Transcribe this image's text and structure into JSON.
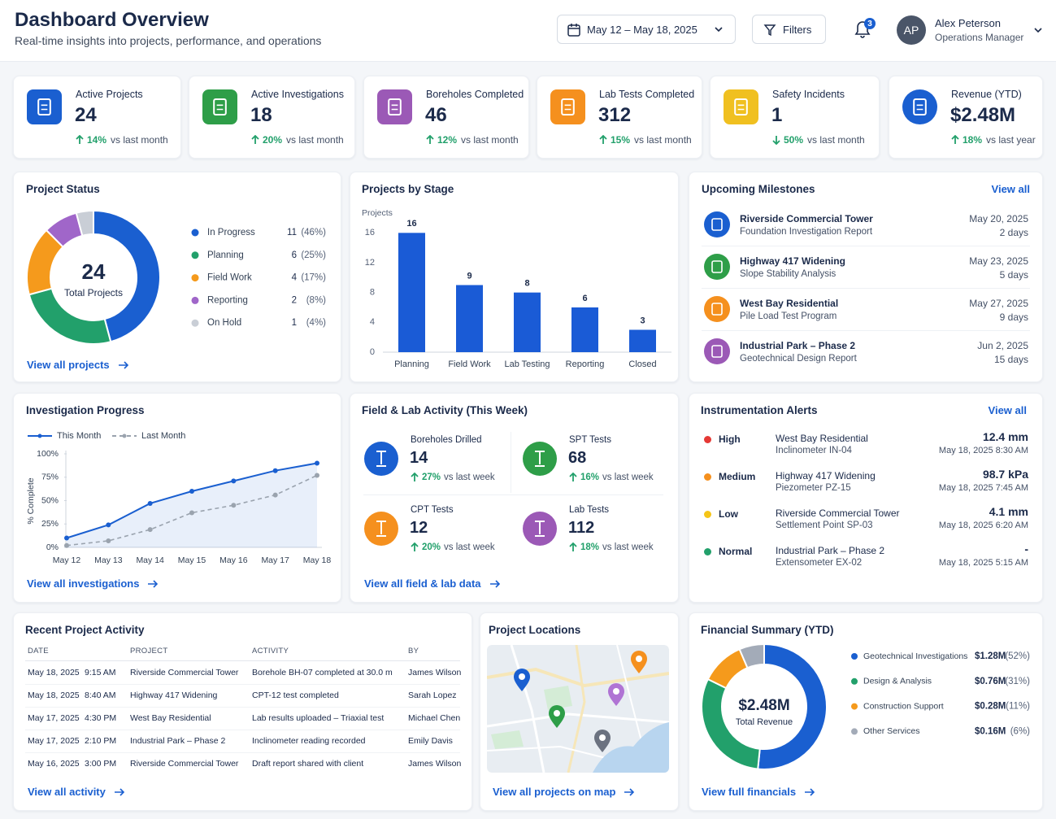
{
  "header": {
    "title": "Dashboard Overview",
    "subtitle": "Real-time insights into projects, performance, and operations",
    "date_range": "May 12 – May 18, 2025",
    "filters": "Filters",
    "notification_count": 3,
    "user": {
      "initials": "AP",
      "name": "Alex Peterson",
      "role": "Operations Manager"
    }
  },
  "kpis": [
    {
      "label": "Active Projects",
      "value": "24",
      "change": "14%",
      "direction": "up",
      "comparison": "vs last month",
      "color": "#1a5fd0"
    },
    {
      "label": "Active Investigations",
      "value": "18",
      "change": "20%",
      "direction": "up",
      "comparison": "vs last month",
      "color": "#2e9e48"
    },
    {
      "label": "Boreholes Completed",
      "value": "46",
      "change": "12%",
      "direction": "up",
      "comparison": "vs last month",
      "color": "#9b59b6"
    },
    {
      "label": "Lab Tests Completed",
      "value": "312",
      "change": "15%",
      "direction": "up",
      "comparison": "vs last month",
      "color": "#f5901e"
    },
    {
      "label": "Safety Incidents",
      "value": "1",
      "change": "50%",
      "direction": "down",
      "comparison": "vs last month",
      "color": "#f0c020"
    },
    {
      "label": "Revenue (YTD)",
      "value": "$2.48M",
      "change": "18%",
      "direction": "up",
      "comparison": "vs last year",
      "color": "#1a5fd0"
    }
  ],
  "project_status": {
    "title": "Project Status",
    "chart": {
      "type": "donut",
      "center_value": 24,
      "center_label": "Total Projects",
      "categories": [
        "In Progress",
        "Planning",
        "Field Work",
        "Reporting",
        "On Hold"
      ],
      "values": [
        11,
        6,
        4,
        2,
        1
      ],
      "percent_labels": [
        "(46%)",
        "(25%)",
        "(17%)",
        "(8%)",
        "(4%)"
      ],
      "colors": [
        "#1a5fd0",
        "#22a06b",
        "#f59a1c",
        "#a066c9",
        "#c9ced6"
      ]
    },
    "link": "View all projects"
  },
  "projects_by_stage": {
    "title": "Projects by Stage",
    "chart": {
      "type": "bar",
      "y_label": "Projects",
      "categories": [
        "Planning",
        "Field Work",
        "Lab Testing",
        "Reporting",
        "Closed"
      ],
      "values": [
        16,
        9,
        8,
        6,
        3
      ],
      "color": "#1a5bd6",
      "ylim": [
        0,
        18
      ],
      "yticks": [
        0,
        4,
        8,
        12,
        16
      ],
      "grid": false
    }
  },
  "upcoming_milestones": {
    "title": "Upcoming Milestones",
    "link": "View all",
    "items": [
      {
        "project": "Riverside Commercial Tower",
        "task": "Foundation Investigation Report",
        "date": "May 20, 2025",
        "due": "2 days",
        "color": "#1a5fd0"
      },
      {
        "project": "Highway 417 Widening",
        "task": "Slope Stability Analysis",
        "date": "May 23, 2025",
        "due": "5 days",
        "color": "#2e9e48"
      },
      {
        "project": "West Bay Residential",
        "task": "Pile Load Test Program",
        "date": "May 27, 2025",
        "due": "9 days",
        "color": "#f5901e"
      },
      {
        "project": "Industrial Park – Phase 2",
        "task": "Geotechnical Design Report",
        "date": "Jun 2, 2025",
        "due": "15 days",
        "color": "#9b59b6"
      }
    ]
  },
  "investigation_progress": {
    "title": "Investigation Progress",
    "chart": {
      "type": "line",
      "y_label": "% Complete",
      "categories": [
        "May 12",
        "May 13",
        "May 14",
        "May 15",
        "May 16",
        "May 17",
        "May 18"
      ],
      "series": [
        {
          "name": "This Month",
          "color": "#1a5fd0",
          "style": "solid",
          "values": [
            10,
            24,
            47,
            60,
            71,
            82,
            90
          ]
        },
        {
          "name": "Last Month",
          "color": "#9aa3ae",
          "style": "dashed",
          "values": [
            2,
            7,
            19,
            37,
            45,
            56,
            77
          ]
        }
      ],
      "ylim": [
        0,
        100
      ],
      "yticks": [
        {
          "value": 0,
          "label": "0%"
        },
        {
          "value": 25,
          "label": "25%"
        },
        {
          "value": 50,
          "label": "50%"
        },
        {
          "value": 75,
          "label": "75%"
        },
        {
          "value": 100,
          "label": "100%"
        }
      ],
      "grid": false
    },
    "link": "View all investigations"
  },
  "field_lab_activity": {
    "title": "Field & Lab Activity (This Week)",
    "items": [
      {
        "label": "Boreholes Drilled",
        "value": 14,
        "change": "27%",
        "direction": "up",
        "comparison": "vs last week",
        "color": "#1a5fd0"
      },
      {
        "label": "SPT Tests",
        "value": 68,
        "change": "16%",
        "direction": "up",
        "comparison": "vs last week",
        "color": "#2e9e48"
      },
      {
        "label": "CPT Tests",
        "value": 12,
        "change": "20%",
        "direction": "up",
        "comparison": "vs last week",
        "color": "#f5901e"
      },
      {
        "label": "Lab Tests",
        "value": 112,
        "change": "18%",
        "direction": "up",
        "comparison": "vs last week",
        "color": "#9b59b6"
      }
    ],
    "link": "View all field & lab data"
  },
  "instrumentation_alerts": {
    "title": "Instrumentation Alerts",
    "link": "View all",
    "items": [
      {
        "level": "High",
        "color": "#e53935",
        "project": "West Bay Residential",
        "instrument": "Inclinometer IN-04",
        "reading": "12.4 mm",
        "time": "May 18, 2025 8:30 AM"
      },
      {
        "level": "Medium",
        "color": "#f5901e",
        "project": "Highway 417 Widening",
        "instrument": "Piezometer PZ-15",
        "reading": "98.7 kPa",
        "time": "May 18, 2025 7:45 AM"
      },
      {
        "level": "Low",
        "color": "#f5c518",
        "project": "Riverside Commercial Tower",
        "instrument": "Settlement Point SP-03",
        "reading": "4.1 mm",
        "time": "May 18, 2025 6:20 AM"
      },
      {
        "level": "Normal",
        "color": "#22a06b",
        "project": "Industrial Park – Phase 2",
        "instrument": "Extensometer EX-02",
        "reading": "-",
        "time": "May 18, 2025 5:15 AM"
      }
    ]
  },
  "recent_activity": {
    "title": "Recent Project Activity",
    "table": {
      "columns": [
        "DATE",
        "PROJECT",
        "ACTIVITY",
        "BY"
      ],
      "rows": [
        {
          "date": "May 18, 2025",
          "time": "9:15 AM",
          "project": "Riverside Commercial Tower",
          "activity": "Borehole BH-07 completed at 30.0 m",
          "by": "James Wilson"
        },
        {
          "date": "May 18, 2025",
          "time": "8:40 AM",
          "project": "Highway 417 Widening",
          "activity": "CPT-12 test completed",
          "by": "Sarah Lopez"
        },
        {
          "date": "May 17, 2025",
          "time": "4:30 PM",
          "project": "West Bay Residential",
          "activity": "Lab results uploaded – Triaxial test",
          "by": "Michael Chen"
        },
        {
          "date": "May 17, 2025",
          "time": "2:10 PM",
          "project": "Industrial Park – Phase 2",
          "activity": "Inclinometer reading recorded",
          "by": "Emily Davis"
        },
        {
          "date": "May 16, 2025",
          "time": "3:00 PM",
          "project": "Riverside Commercial Tower",
          "activity": "Draft report shared with client",
          "by": "James Wilson"
        }
      ]
    },
    "link": "View all activity"
  },
  "project_locations": {
    "title": "Project Locations",
    "link": "View all projects on map"
  },
  "financial_summary": {
    "title": "Financial Summary (YTD)",
    "chart": {
      "type": "donut",
      "center_value": "$2.48M",
      "center_label": "Total Revenue",
      "categories": [
        "Geotechnical Investigations",
        "Design & Analysis",
        "Construction Support",
        "Other Services"
      ],
      "values": [
        1.28,
        0.76,
        0.28,
        0.16
      ],
      "value_labels": [
        "$1.28M",
        "$0.76M",
        "$0.28M",
        "$0.16M"
      ],
      "percent_labels": [
        "(52%)",
        "(31%)",
        "(11%)",
        "(6%)"
      ],
      "colors": [
        "#1a5fd0",
        "#22a06b",
        "#f59a1c",
        "#a3abb8"
      ]
    },
    "link": "View full financials"
  }
}
